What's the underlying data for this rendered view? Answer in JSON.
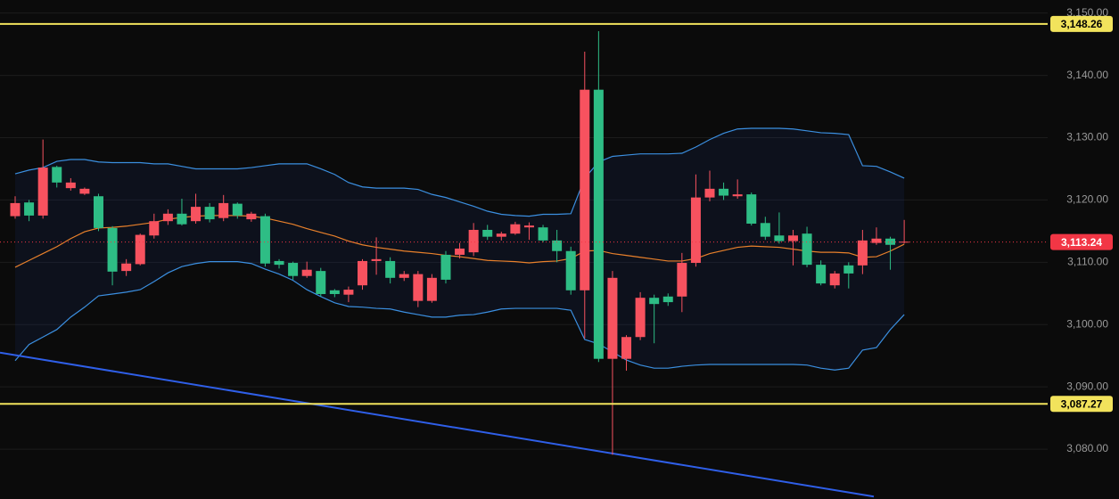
{
  "chart_data": {
    "type": "candlestick",
    "up_color": "#2ebd85",
    "down_color": "#f7525f",
    "grid": true,
    "ylim": [
      3072.0,
      3152.1
    ],
    "yticks": [
      {
        "value": 3080,
        "label": "3,080.00"
      },
      {
        "value": 3090,
        "label": "3,090.00"
      },
      {
        "value": 3100,
        "label": "3,100.00"
      },
      {
        "value": 3110,
        "label": "3,110.00"
      },
      {
        "value": 3120,
        "label": "3,120.00"
      },
      {
        "value": 3130,
        "label": "3,130.00"
      },
      {
        "value": 3140,
        "label": "3,140.00"
      },
      {
        "value": 3150,
        "label": "3,150.00"
      }
    ],
    "open": [
      3119.5,
      3117.5,
      3125.2,
      3122.8,
      3122.8,
      3121.8,
      3115.5,
      3108.5,
      3109.8,
      3114.4,
      3116.6,
      3117.8,
      3116.1,
      3118.9,
      3116.9,
      3119.5,
      3117.5,
      3117.8,
      3109.8,
      3109.6,
      3107.8,
      3108.8,
      3104.9,
      3104.9,
      3105.6,
      3110.2,
      3110.5,
      3107.5,
      3108.1,
      3108.1,
      3107.5,
      3107.2,
      3112.2,
      3115.2,
      3114.1,
      3114.6,
      3116.1,
      3115.9,
      3113.5,
      3111.8,
      3105.5,
      3137.7,
      3094.5,
      3107.5,
      3098.0,
      3104.3,
      3103.3,
      3103.6,
      3109.9,
      3120.4,
      3121.8,
      3120.7,
      3120.9,
      3116.2,
      3114.1,
      3113.4,
      3114.3,
      3109.6,
      3106.6,
      3108.2,
      3108.2,
      3113.5,
      3113.8,
      3112.8,
      3113.3
    ],
    "high": [
      3120.6,
      3120.0,
      3129.7,
      3125.5,
      3123.5,
      3122.0,
      3121.0,
      3115.8,
      3110.5,
      3114.6,
      3117.8,
      3118.5,
      3120.2,
      3121.0,
      3119.5,
      3120.8,
      3119.6,
      3118.1,
      3117.8,
      3110.5,
      3110.1,
      3110.1,
      3109.1,
      3105.7,
      3106.1,
      3110.5,
      3114.0,
      3110.8,
      3108.6,
      3108.6,
      3108.1,
      3111.8,
      3113.1,
      3116.3,
      3116.0,
      3114.9,
      3116.5,
      3116.4,
      3116.0,
      3115.2,
      3112.5,
      3143.8,
      3147.1,
      3108.6,
      3098.3,
      3105.2,
      3104.8,
      3105.0,
      3111.5,
      3124.1,
      3124.7,
      3122.8,
      3123.3,
      3121.2,
      3117.3,
      3118.0,
      3115.2,
      3115.7,
      3110.3,
      3108.6,
      3110.0,
      3115.2,
      3115.6,
      3114.1,
      3116.8
    ],
    "low": [
      3117.0,
      3116.6,
      3117.0,
      3122.0,
      3121.5,
      3120.8,
      3115.0,
      3106.3,
      3107.8,
      3109.5,
      3113.8,
      3116.0,
      3115.9,
      3116.2,
      3116.4,
      3116.6,
      3117.0,
      3116.5,
      3109.3,
      3109.0,
      3107.2,
      3107.5,
      3104.5,
      3104.4,
      3103.6,
      3105.6,
      3108.0,
      3106.6,
      3107.0,
      3102.8,
      3103.5,
      3106.6,
      3110.6,
      3111.0,
      3113.6,
      3113.5,
      3114.4,
      3113.6,
      3113.2,
      3110.0,
      3104.8,
      3097.8,
      3094.0,
      3079.1,
      3092.6,
      3097.5,
      3097.0,
      3103.0,
      3102.0,
      3109.3,
      3119.8,
      3120.0,
      3120.2,
      3115.9,
      3113.6,
      3113.0,
      3109.5,
      3109.2,
      3106.3,
      3105.8,
      3105.8,
      3108.1,
      3112.8,
      3108.8,
      3113.0
    ],
    "close": [
      3117.4,
      3119.6,
      3117.5,
      3125.3,
      3121.9,
      3121.0,
      3120.6,
      3115.5,
      3108.6,
      3109.7,
      3114.3,
      3116.6,
      3117.8,
      3116.6,
      3118.9,
      3117.1,
      3119.4,
      3116.9,
      3117.4,
      3110.2,
      3109.9,
      3107.8,
      3108.6,
      3105.5,
      3104.8,
      3106.3,
      3110.2,
      3110.2,
      3107.5,
      3103.8,
      3103.8,
      3111.2,
      3111.2,
      3111.6,
      3115.2,
      3114.1,
      3114.6,
      3115.6,
      3115.6,
      3113.5,
      3111.8,
      3105.5,
      3137.7,
      3094.5,
      3094.5,
      3098.0,
      3104.3,
      3104.5,
      3104.5,
      3109.9,
      3120.4,
      3121.8,
      3120.6,
      3120.9,
      3116.3,
      3114.3,
      3113.4,
      3114.6,
      3109.6,
      3106.3,
      3109.5,
      3109.5,
      3113.1,
      3113.8,
      3113.24
    ],
    "bands": [
      {
        "color": "#3b8fe0",
        "values": [
          3124.2,
          3124.8,
          3125.2,
          3126.2,
          3126.5,
          3126.5,
          3126.1,
          3126.0,
          3126.0,
          3126.0,
          3125.8,
          3125.8,
          3125.4,
          3125.0,
          3125.0,
          3125.0,
          3125.0,
          3125.2,
          3125.5,
          3125.8,
          3125.8,
          3125.8,
          3125.0,
          3124.1,
          3122.8,
          3122.1,
          3121.9,
          3121.9,
          3121.9,
          3121.7,
          3120.9,
          3120.4,
          3119.7,
          3119.0,
          3118.2,
          3117.7,
          3117.5,
          3117.4,
          3117.7,
          3117.7,
          3117.8,
          3123.5,
          3126.1,
          3127.0,
          3127.2,
          3127.4,
          3127.4,
          3127.4,
          3127.5,
          3128.5,
          3129.7,
          3130.7,
          3131.4,
          3131.5,
          3131.5,
          3131.5,
          3131.4,
          3131.1,
          3130.8,
          3130.7,
          3130.5,
          3125.5,
          3125.4,
          3124.5,
          3123.5
        ]
      },
      {
        "color": "#e8802b",
        "values": [
          3109.2,
          3110.3,
          3111.4,
          3112.5,
          3113.8,
          3114.9,
          3115.5,
          3115.6,
          3115.8,
          3116.1,
          3116.4,
          3116.9,
          3117.2,
          3117.4,
          3117.5,
          3117.5,
          3117.5,
          3117.4,
          3117.1,
          3116.6,
          3116.1,
          3115.4,
          3114.8,
          3114.2,
          3113.4,
          3112.8,
          3112.4,
          3112.1,
          3111.8,
          3111.6,
          3111.4,
          3111.1,
          3110.9,
          3110.6,
          3110.3,
          3110.2,
          3110.1,
          3109.9,
          3110.1,
          3110.2,
          3110.6,
          3111.8,
          3111.9,
          3111.4,
          3111.1,
          3110.8,
          3110.5,
          3110.2,
          3110.2,
          3110.6,
          3111.4,
          3111.9,
          3112.4,
          3112.6,
          3112.5,
          3112.4,
          3112.1,
          3111.8,
          3111.6,
          3111.6,
          3111.5,
          3110.8,
          3110.9,
          3111.8,
          3112.9
        ]
      },
      {
        "color": "#3b8fe0",
        "values": [
          3094.2,
          3096.8,
          3098.0,
          3099.2,
          3101.2,
          3102.8,
          3104.6,
          3104.9,
          3105.2,
          3105.6,
          3106.9,
          3108.3,
          3109.3,
          3109.8,
          3110.1,
          3110.1,
          3110.1,
          3109.8,
          3108.9,
          3108.1,
          3107.1,
          3105.6,
          3104.5,
          3103.5,
          3102.9,
          3102.8,
          3102.6,
          3102.5,
          3102.0,
          3101.6,
          3101.2,
          3101.2,
          3101.5,
          3101.6,
          3102.0,
          3102.5,
          3102.6,
          3102.6,
          3102.6,
          3102.6,
          3102.3,
          3097.6,
          3096.9,
          3095.6,
          3094.3,
          3093.5,
          3093.0,
          3093.0,
          3093.3,
          3093.5,
          3093.6,
          3093.6,
          3093.6,
          3093.6,
          3093.6,
          3093.6,
          3093.6,
          3093.5,
          3093.0,
          3092.7,
          3093.0,
          3095.9,
          3096.3,
          3099.2,
          3101.6
        ]
      }
    ],
    "trendline": {
      "color": "#2f5fe8",
      "values": [
        3095.5,
        3072.4
      ]
    },
    "price_lines": [
      {
        "value": 3148.26,
        "label": "3,148.26",
        "color": "#f2e35c",
        "text_color": "#000000",
        "dashed": false
      },
      {
        "value": 3113.24,
        "label": "3,113.24",
        "color": "#f23645",
        "text_color": "#ffffff",
        "dashed": true
      },
      {
        "value": 3087.27,
        "label": "3,087.27",
        "color": "#f2e35c",
        "text_color": "#000000",
        "dashed": false
      }
    ]
  }
}
